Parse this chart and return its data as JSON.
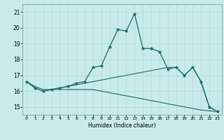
{
  "title": "",
  "xlabel": "Humidex (Indice chaleur)",
  "bg_color": "#c8eaea",
  "line_color": "#1e6b6b",
  "xlim": [
    -0.5,
    23.5
  ],
  "ylim": [
    14.5,
    21.5
  ],
  "yticks": [
    15,
    16,
    17,
    18,
    19,
    20,
    21
  ],
  "xticks": [
    0,
    1,
    2,
    3,
    4,
    5,
    6,
    7,
    8,
    9,
    10,
    11,
    12,
    13,
    14,
    15,
    16,
    17,
    18,
    19,
    20,
    21,
    22,
    23
  ],
  "series1_x": [
    0,
    1,
    2,
    3,
    4,
    5,
    6,
    7,
    8,
    9,
    10,
    11,
    12,
    13,
    14,
    15,
    16,
    17,
    18,
    19,
    20,
    21,
    22,
    23
  ],
  "series1_y": [
    16.6,
    16.2,
    16.0,
    16.1,
    16.2,
    16.3,
    16.5,
    16.6,
    17.5,
    17.6,
    18.8,
    19.9,
    19.8,
    20.9,
    18.7,
    18.7,
    18.5,
    17.4,
    17.5,
    17.0,
    17.5,
    16.6,
    15.0,
    14.7
  ],
  "series2_x": [
    0,
    1,
    2,
    3,
    4,
    5,
    6,
    7,
    8,
    9,
    10,
    11,
    12,
    13,
    14,
    15,
    16,
    17,
    18,
    19,
    20,
    21,
    22,
    23
  ],
  "series2_y": [
    16.6,
    16.3,
    16.1,
    16.1,
    16.2,
    16.3,
    16.4,
    16.5,
    16.6,
    16.7,
    16.8,
    16.9,
    17.0,
    17.1,
    17.2,
    17.3,
    17.4,
    17.5,
    17.5,
    17.0,
    17.5,
    16.6,
    15.0,
    14.7
  ],
  "series3_x": [
    0,
    1,
    2,
    3,
    4,
    5,
    6,
    7,
    8,
    9,
    10,
    11,
    12,
    13,
    14,
    15,
    16,
    17,
    18,
    19,
    20,
    21,
    22,
    23
  ],
  "series3_y": [
    16.6,
    16.2,
    16.0,
    16.1,
    16.1,
    16.1,
    16.1,
    16.1,
    16.1,
    16.0,
    15.9,
    15.8,
    15.7,
    15.6,
    15.5,
    15.4,
    15.3,
    15.2,
    15.1,
    15.0,
    14.9,
    14.8,
    14.75,
    14.7
  ]
}
